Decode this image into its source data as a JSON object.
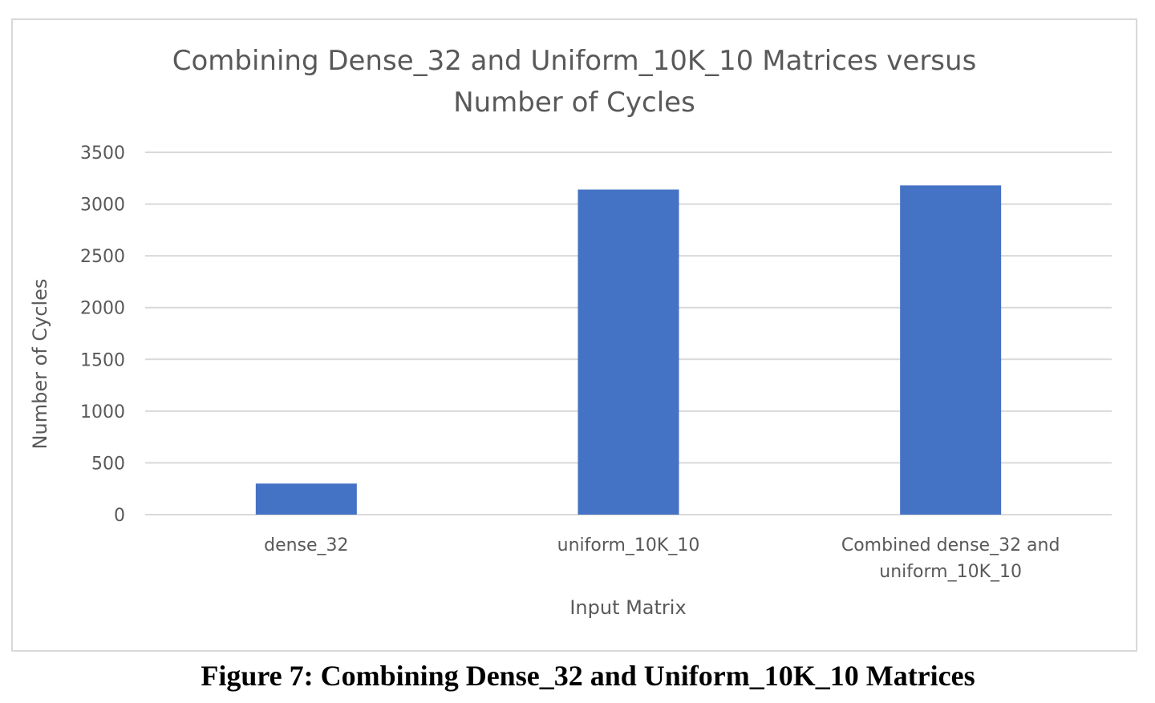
{
  "caption": "Figure 7: Combining Dense_32 and Uniform_10K_10 Matrices",
  "chart_data": {
    "type": "bar",
    "title": "Combining Dense_32 and Uniform_10K_10 Matrices versus Number of Cycles",
    "title_lines": [
      "Combining Dense_32 and Uniform_10K_10 Matrices versus",
      "Number of Cycles"
    ],
    "xlabel": "Input Matrix",
    "ylabel": "Number of Cycles",
    "categories": [
      "dense_32",
      "uniform_10K_10",
      "Combined dense_32 and uniform_10K_10"
    ],
    "category_lines": [
      [
        "dense_32"
      ],
      [
        "uniform_10K_10"
      ],
      [
        "Combined dense_32 and",
        "uniform_10K_10"
      ]
    ],
    "values": [
      300,
      3140,
      3180
    ],
    "ylim": [
      0,
      3500
    ],
    "yticks": [
      0,
      500,
      1000,
      1500,
      2000,
      2500,
      3000,
      3500
    ],
    "grid": true,
    "legend": "none",
    "colors": {
      "bar": "#4472C4",
      "grid": "#d9d9d9",
      "text": "#595959",
      "border": "#d9d9d9"
    }
  }
}
